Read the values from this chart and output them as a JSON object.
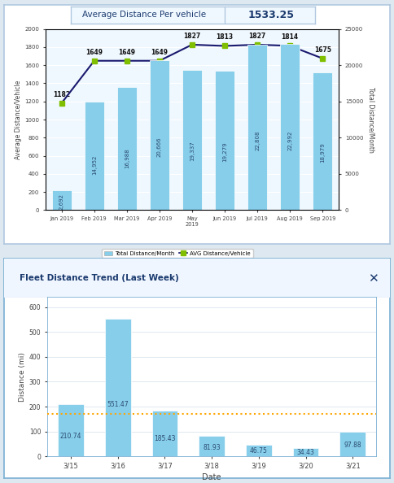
{
  "chart1": {
    "title_label": "Average Distance Per vehicle",
    "title_value": "1533.25",
    "categories": [
      "Jan 2019",
      "Feb 2019",
      "Mar 2019",
      "Apr 2019",
      "May\n2019",
      "Jun 2019",
      "Jul 2019",
      "Aug 2019",
      "Sep 2019"
    ],
    "bar_values": [
      2692,
      14952,
      16988,
      20666,
      19337,
      19279,
      22808,
      22992,
      18979
    ],
    "line_values": [
      1182,
      1649,
      1649,
      1649,
      1827,
      1813,
      1827,
      1814,
      1675
    ],
    "bar_labels": [
      "2,692",
      "14,952",
      "16,988",
      "20,666",
      "19,337",
      "19,279",
      "22,808",
      "22,992",
      "18,979"
    ],
    "line_labels": [
      "1182",
      "1649",
      "1649",
      "1649",
      "1827",
      "1813",
      "1827",
      "1814",
      "1675"
    ],
    "bar_color": "#87CEEB",
    "line_color": "#1a1a6e",
    "marker_color": "#7FBF00",
    "left_ylabel": "Average Distance/Vehicle",
    "right_ylabel": "Total Distance/Month",
    "left_ylim": [
      0,
      2000
    ],
    "right_ylim": [
      0,
      25000
    ],
    "left_yticks": [
      0,
      200,
      400,
      600,
      800,
      1000,
      1200,
      1400,
      1600,
      1800,
      2000
    ],
    "right_yticks": [
      0,
      5000,
      10000,
      15000,
      20000,
      25000
    ],
    "legend_bar": "Total Distance/Month",
    "legend_line": "AVG Distance/Vehicle",
    "bg_color": "#f0f8ff",
    "border_color": "#b0c8e0",
    "panel_bg": "#ffffff"
  },
  "chart2": {
    "title": "Fleet Distance Trend (Last Week)",
    "categories": [
      "3/15",
      "3/16",
      "3/17",
      "3/18",
      "3/19",
      "3/20",
      "3/21"
    ],
    "bar_values": [
      210.74,
      551.47,
      185.43,
      81.93,
      46.75,
      34.43,
      97.88
    ],
    "bar_labels": [
      "210.74",
      "551.47",
      "185.43",
      "81.93",
      "46.75",
      "34.43",
      "97.88"
    ],
    "bar_color": "#87CEEB",
    "avg_line_value": 172.0,
    "avg_line_color": "#FFA500",
    "xlabel": "Date",
    "ylabel": "Distance (mi)",
    "ylim": [
      0,
      640
    ],
    "yticks": [
      0,
      100,
      200,
      300,
      400,
      500,
      600
    ],
    "bg_color": "#ffffff",
    "title_color": "#1a3a6e",
    "border_color": "#7ab0d4",
    "panel_bg": "#ffffff"
  },
  "fig_bg": "#dde8f0"
}
